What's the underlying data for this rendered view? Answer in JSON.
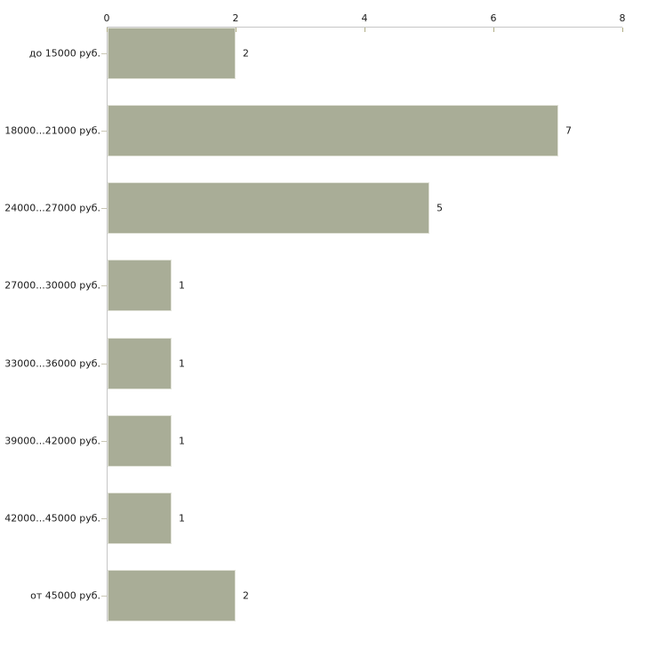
{
  "chart_data": {
    "type": "bar",
    "orientation": "horizontal",
    "title": "",
    "xlabel": "",
    "ylabel": "",
    "categories": [
      "до 15000 руб.",
      "18000...21000 руб.",
      "24000...27000 руб.",
      "27000...30000 руб.",
      "33000...36000 руб.",
      "39000...42000 руб.",
      "42000...45000 руб.",
      "от 45000 руб."
    ],
    "values": [
      2,
      7,
      5,
      1,
      1,
      1,
      1,
      2
    ],
    "value_labels": [
      "2",
      "7",
      "5",
      "1",
      "1",
      "1",
      "1",
      "2"
    ],
    "xlim": [
      0,
      8
    ],
    "xticks": [
      0,
      2,
      4,
      6,
      8
    ],
    "xtick_labels": [
      "0",
      "2",
      "4",
      "6",
      "8"
    ],
    "grid": false,
    "legend": null,
    "x_axis_position": "top",
    "colors": {
      "bar_fill": "#a9ad97",
      "bar_border": "#e1e2d8",
      "axis_line": "#c6c6c6",
      "x_tick_mark": "#b0ad86",
      "category_tick_mark": "#c9c6b4",
      "text": "#1a1a1a",
      "background": "#ffffff"
    }
  }
}
